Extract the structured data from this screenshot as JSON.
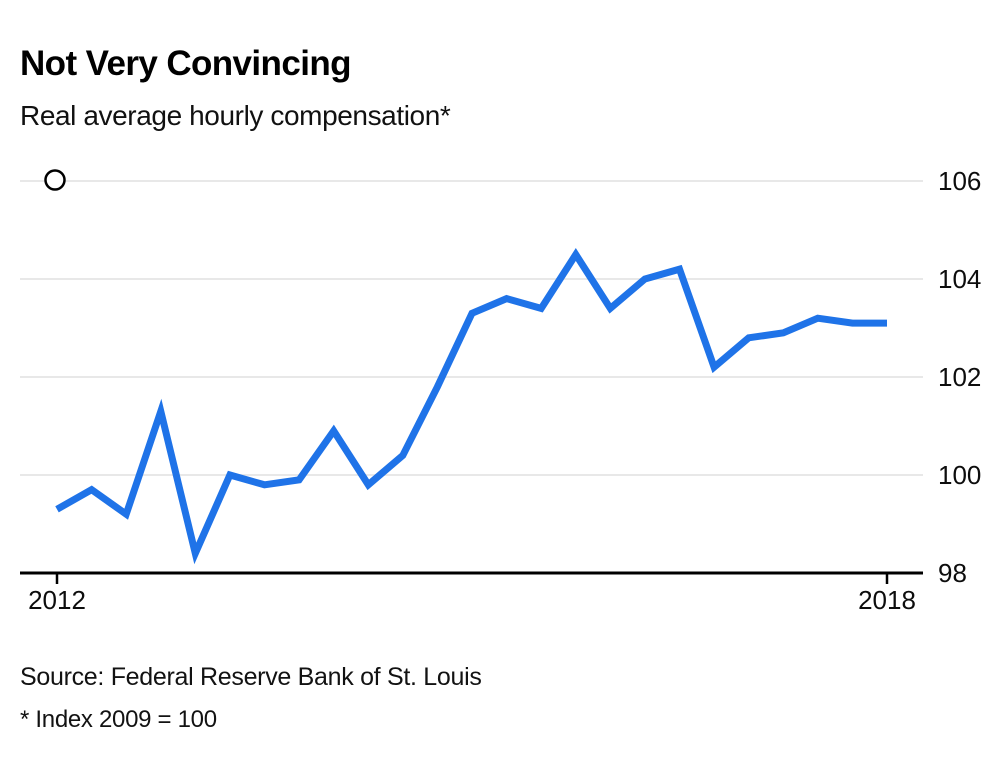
{
  "header": {
    "title": "Not Very Convincing",
    "subtitle": "Real average hourly compensation*"
  },
  "footer": {
    "source": "Source: Federal Reserve Bank of St. Louis",
    "footnote": "* Index 2009 = 100"
  },
  "legend": {
    "marker": "open-circle-icon"
  },
  "colors": {
    "line": "#1f73e8",
    "grid": "#e8e8e8",
    "axis": "#000000",
    "text": "#0d0d0d",
    "background": "#ffffff"
  },
  "chart_data": {
    "type": "line",
    "title": "Not Very Convincing",
    "subtitle": "Real average hourly compensation*",
    "x_unit": "quarterly",
    "x": [
      "2012 Q1",
      "2012 Q2",
      "2012 Q3",
      "2012 Q4",
      "2013 Q1",
      "2013 Q2",
      "2013 Q3",
      "2013 Q4",
      "2014 Q1",
      "2014 Q2",
      "2014 Q3",
      "2014 Q4",
      "2015 Q1",
      "2015 Q2",
      "2015 Q3",
      "2015 Q4",
      "2016 Q1",
      "2016 Q2",
      "2016 Q3",
      "2016 Q4",
      "2017 Q1",
      "2017 Q2",
      "2017 Q3",
      "2017 Q4",
      "2018 Q1"
    ],
    "values": [
      99.3,
      99.7,
      99.2,
      101.3,
      98.4,
      100.0,
      99.8,
      99.9,
      100.9,
      99.8,
      100.4,
      101.8,
      103.3,
      103.6,
      103.4,
      104.5,
      103.4,
      104.0,
      104.2,
      102.2,
      102.8,
      102.9,
      103.2,
      103.1,
      103.1
    ],
    "ylim": [
      98,
      106
    ],
    "yticks": [
      98,
      100,
      102,
      104,
      106
    ],
    "xticks": [
      "2012",
      "2018"
    ],
    "grid": "horizontal",
    "legend_position": "top-left",
    "line_color": "#1f73e8"
  }
}
